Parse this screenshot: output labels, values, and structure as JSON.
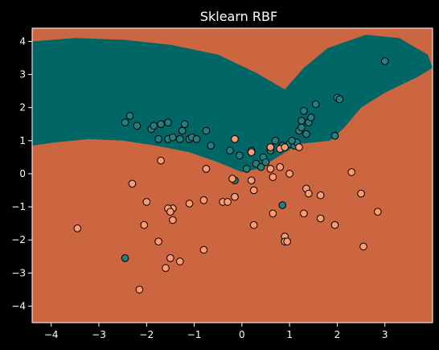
{
  "chart_data": {
    "type": "scatter",
    "title": "Sklearn RBF",
    "xlabel": "",
    "ylabel": "",
    "xlim": [
      -4.4,
      4.0
    ],
    "ylim": [
      -4.5,
      4.4
    ],
    "xticks": [
      -4,
      -3,
      -2,
      -1,
      0,
      1,
      2,
      3
    ],
    "yticks": [
      -4,
      -3,
      -2,
      -1,
      0,
      1,
      2,
      3,
      4
    ],
    "grid": false,
    "legend": "none",
    "decision_regions": {
      "background_class_color": "#cc6640",
      "teal_class_color": "#006666",
      "teal_region_boundary": [
        [
          -4.4,
          4.0
        ],
        [
          -3.5,
          4.1
        ],
        [
          -2.5,
          4.05
        ],
        [
          -1.5,
          3.9
        ],
        [
          -0.5,
          3.6
        ],
        [
          0.3,
          3.05
        ],
        [
          0.9,
          2.55
        ],
        [
          1.3,
          3.2
        ],
        [
          1.8,
          3.8
        ],
        [
          2.6,
          4.2
        ],
        [
          3.3,
          4.1
        ],
        [
          3.9,
          3.6
        ],
        [
          4.0,
          3.2
        ],
        [
          3.65,
          2.9
        ],
        [
          3.0,
          2.45
        ],
        [
          2.5,
          2.0
        ],
        [
          2.15,
          1.4
        ],
        [
          1.85,
          1.0
        ],
        [
          1.2,
          0.9
        ],
        [
          0.8,
          0.55
        ],
        [
          0.35,
          0.15
        ],
        [
          0.0,
          0.05
        ],
        [
          -0.5,
          0.35
        ],
        [
          -1.1,
          0.65
        ],
        [
          -1.8,
          0.85
        ],
        [
          -2.5,
          1.0
        ],
        [
          -3.2,
          1.05
        ],
        [
          -3.9,
          0.95
        ],
        [
          -4.4,
          0.85
        ]
      ]
    },
    "series": [
      {
        "class": "teal",
        "color": "#208080",
        "points": [
          [
            -1.55,
            1.55
          ],
          [
            -2.35,
            1.75
          ],
          [
            -2.45,
            1.55
          ],
          [
            -1.75,
            1.05
          ],
          [
            -1.55,
            1.05
          ],
          [
            -1.45,
            1.1
          ],
          [
            -1.25,
            1.3
          ],
          [
            -1.1,
            1.05
          ],
          [
            -1.05,
            1.1
          ],
          [
            -0.95,
            1.05
          ],
          [
            -0.75,
            1.3
          ],
          [
            -0.65,
            0.85
          ],
          [
            -1.9,
            1.35
          ],
          [
            -1.85,
            1.45
          ],
          [
            -2.2,
            1.45
          ],
          [
            -1.7,
            1.5
          ],
          [
            -1.3,
            1.05
          ],
          [
            -1.2,
            1.5
          ],
          [
            -0.25,
            0.7
          ],
          [
            -0.05,
            0.55
          ],
          [
            0.1,
            0.15
          ],
          [
            0.3,
            0.3
          ],
          [
            0.4,
            0.2
          ],
          [
            0.45,
            0.5
          ],
          [
            0.5,
            0.35
          ],
          [
            0.6,
            0.7
          ],
          [
            0.7,
            1.0
          ],
          [
            0.85,
            0.85
          ],
          [
            1.0,
            0.9
          ],
          [
            1.1,
            0.85
          ],
          [
            1.15,
            0.95
          ],
          [
            1.2,
            1.3
          ],
          [
            1.25,
            1.4
          ],
          [
            1.25,
            1.6
          ],
          [
            1.3,
            1.9
          ],
          [
            1.35,
            1.2
          ],
          [
            1.4,
            1.55
          ],
          [
            1.45,
            1.7
          ],
          [
            1.55,
            2.1
          ],
          [
            1.95,
            1.15
          ],
          [
            2.0,
            2.3
          ],
          [
            2.05,
            2.25
          ],
          [
            3.0,
            3.4
          ],
          [
            -0.15,
            -0.2
          ],
          [
            0.85,
            -0.95
          ],
          [
            -2.45,
            -2.55
          ],
          [
            0.2,
            0.7
          ],
          [
            1.05,
            1.0
          ]
        ]
      },
      {
        "class": "orange",
        "color": "#ff9b73",
        "points": [
          [
            -0.15,
            1.05
          ],
          [
            0.2,
            0.65
          ],
          [
            0.6,
            0.8
          ],
          [
            0.8,
            0.75
          ],
          [
            0.9,
            0.8
          ],
          [
            1.2,
            0.8
          ],
          [
            -1.7,
            0.4
          ],
          [
            -0.75,
            0.15
          ],
          [
            0.6,
            0.15
          ],
          [
            0.8,
            0.2
          ],
          [
            1.0,
            0.0
          ],
          [
            0.65,
            -0.1
          ],
          [
            0.2,
            -0.2
          ],
          [
            0.25,
            -0.5
          ],
          [
            -0.15,
            -0.7
          ],
          [
            -0.4,
            -0.85
          ],
          [
            -0.3,
            -0.85
          ],
          [
            -0.8,
            -0.8
          ],
          [
            -1.1,
            -0.9
          ],
          [
            -1.45,
            -1.05
          ],
          [
            -1.55,
            -1.05
          ],
          [
            -1.5,
            -1.15
          ],
          [
            -1.45,
            -1.4
          ],
          [
            -2.0,
            -0.85
          ],
          [
            -2.3,
            -0.3
          ],
          [
            -3.45,
            -1.65
          ],
          [
            -2.05,
            -1.55
          ],
          [
            -1.75,
            -2.05
          ],
          [
            -1.5,
            -2.55
          ],
          [
            -1.6,
            -2.85
          ],
          [
            -1.3,
            -2.65
          ],
          [
            -0.8,
            -2.3
          ],
          [
            -2.15,
            -3.5
          ],
          [
            0.25,
            -1.55
          ],
          [
            0.65,
            -1.2
          ],
          [
            0.9,
            -1.9
          ],
          [
            0.9,
            -2.05
          ],
          [
            0.95,
            -2.05
          ],
          [
            1.3,
            -1.2
          ],
          [
            1.35,
            -0.45
          ],
          [
            1.4,
            -0.6
          ],
          [
            1.65,
            -0.65
          ],
          [
            1.65,
            -1.35
          ],
          [
            1.95,
            -1.55
          ],
          [
            2.3,
            0.05
          ],
          [
            2.5,
            -0.6
          ],
          [
            2.85,
            -1.15
          ],
          [
            2.55,
            -2.2
          ],
          [
            -0.2,
            -0.15
          ]
        ]
      }
    ]
  }
}
